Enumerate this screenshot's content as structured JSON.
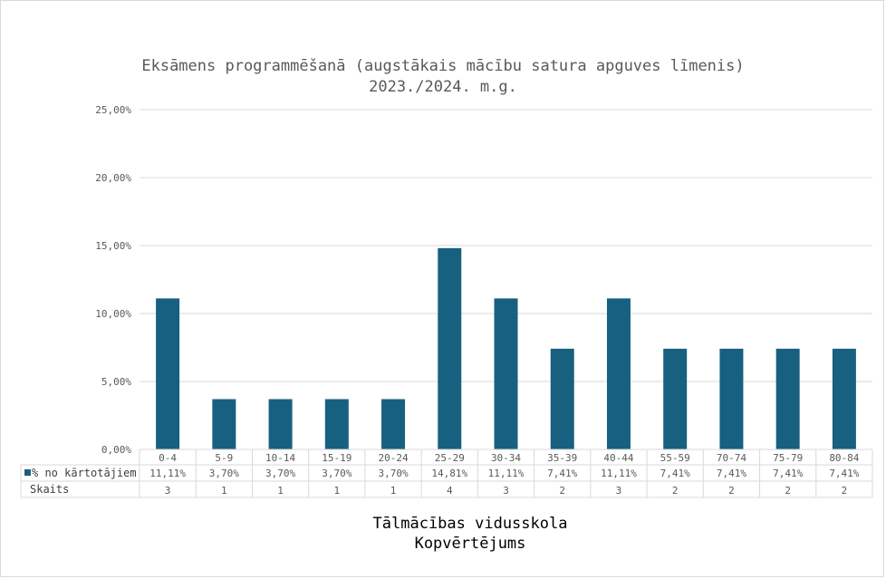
{
  "chart_data": {
    "type": "bar",
    "title": "Eksāmens programmēšanā (augstākais mācību satura apguves līmenis)",
    "subtitle": "2023./2024. m.g.",
    "categories": [
      "0-4",
      "5-9",
      "10-14",
      "15-19",
      "20-24",
      "25-29",
      "30-34",
      "35-39",
      "40-44",
      "55-59",
      "70-74",
      "75-79",
      "80-84"
    ],
    "series": [
      {
        "name": "% no kārtotājiem",
        "values": [
          11.11,
          3.7,
          3.7,
          3.7,
          3.7,
          14.81,
          11.11,
          7.41,
          11.11,
          7.41,
          7.41,
          7.41,
          7.41
        ],
        "labels": [
          "11,11%",
          "3,70%",
          "3,70%",
          "3,70%",
          "3,70%",
          "14,81%",
          "11,11%",
          "7,41%",
          "11,11%",
          "7,41%",
          "7,41%",
          "7,41%",
          "7,41%"
        ],
        "color": "#17607f"
      }
    ],
    "table_rows": [
      {
        "name": "Skaits",
        "values": [
          "3",
          "1",
          "1",
          "1",
          "1",
          "4",
          "3",
          "2",
          "3",
          "2",
          "2",
          "2",
          "2"
        ]
      }
    ],
    "ylim": [
      0,
      25
    ],
    "yticks": [
      0,
      5,
      10,
      15,
      20,
      25
    ],
    "ytick_labels": [
      "0,00%",
      "5,00%",
      "10,00%",
      "15,00%",
      "20,00%",
      "25,00%"
    ],
    "grid": true,
    "legend": "data-table"
  },
  "footer": {
    "line1": "Tālmācības vidusskola",
    "line2": "Kopvērtējums"
  },
  "colors": {
    "bar": "#17607f",
    "grid": "#d9d9d9",
    "text": "#595959"
  }
}
